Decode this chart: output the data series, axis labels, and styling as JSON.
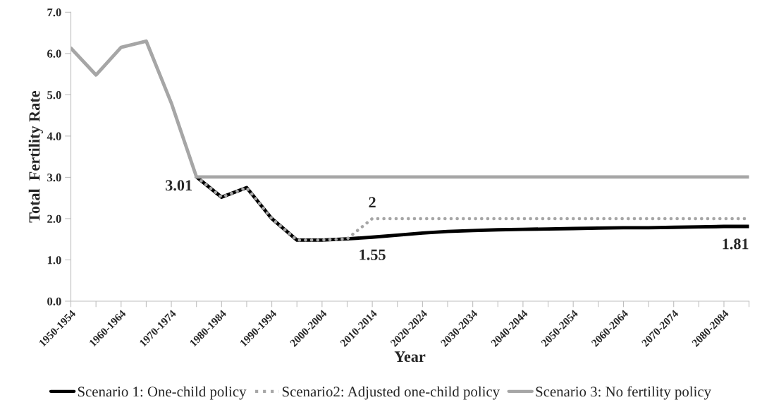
{
  "chart_data": {
    "type": "line",
    "xlabel": "Year",
    "ylabel": "Total  Fertility Rate",
    "categories": [
      "1950-1954",
      null,
      "1960-1964",
      null,
      "1970-1974",
      null,
      "1980-1984",
      null,
      "1990-1994",
      null,
      "2000-2004",
      null,
      "2010-2014",
      null,
      "2020-2024",
      null,
      "2030-2034",
      null,
      "2040-2044",
      null,
      "2050-2054",
      null,
      "2060-2064",
      null,
      "2070-2074",
      null,
      "2080-2084",
      null
    ],
    "series": [
      {
        "name": "Scenario 1: One-child policy",
        "color": "#000000",
        "line_style": "solid",
        "values": [
          null,
          null,
          null,
          null,
          null,
          3.01,
          2.52,
          2.75,
          2.0,
          1.48,
          1.48,
          1.51,
          1.55,
          1.6,
          1.65,
          1.69,
          1.71,
          1.73,
          1.74,
          1.75,
          1.76,
          1.77,
          1.78,
          1.78,
          1.79,
          1.8,
          1.81,
          1.81
        ],
        "value_labels": [
          null,
          null,
          null,
          null,
          null,
          "3.01",
          null,
          null,
          null,
          null,
          null,
          null,
          "1.55",
          null,
          null,
          null,
          null,
          null,
          null,
          null,
          null,
          null,
          null,
          null,
          null,
          null,
          null,
          "1.81"
        ]
      },
      {
        "name": "Scenario2: Adjusted one-child policy",
        "color": "#a6a6a6",
        "line_style": "dotted",
        "values": [
          null,
          null,
          null,
          null,
          null,
          3.01,
          2.52,
          2.75,
          2.0,
          1.48,
          1.48,
          1.51,
          2.0,
          2.0,
          2.0,
          2.0,
          2.0,
          2.0,
          2.0,
          2.0,
          2.0,
          2.0,
          2.0,
          2.0,
          2.0,
          2.0,
          2.0,
          2.0
        ],
        "value_labels": [
          null,
          null,
          null,
          null,
          null,
          null,
          null,
          null,
          null,
          null,
          null,
          null,
          "2",
          null,
          null,
          null,
          null,
          null,
          null,
          null,
          null,
          null,
          null,
          null,
          null,
          null,
          null,
          null
        ]
      },
      {
        "name": "Scenario 3: No fertility policy",
        "color": "#a6a6a6",
        "line_style": "solid",
        "values": [
          6.13,
          5.48,
          6.15,
          6.3,
          4.8,
          3.01,
          3.01,
          3.01,
          3.01,
          3.01,
          3.01,
          3.01,
          3.01,
          3.01,
          3.01,
          3.01,
          3.01,
          3.01,
          3.01,
          3.01,
          3.01,
          3.01,
          3.01,
          3.01,
          3.01,
          3.01,
          3.01,
          3.01
        ]
      }
    ],
    "ylim": [
      0,
      7
    ],
    "yticks": [
      "0.0",
      "1.0",
      "2.0",
      "3.0",
      "4.0",
      "5.0",
      "6.0",
      "7.0"
    ],
    "legend": "bottom",
    "grid": false,
    "marker": "none"
  }
}
